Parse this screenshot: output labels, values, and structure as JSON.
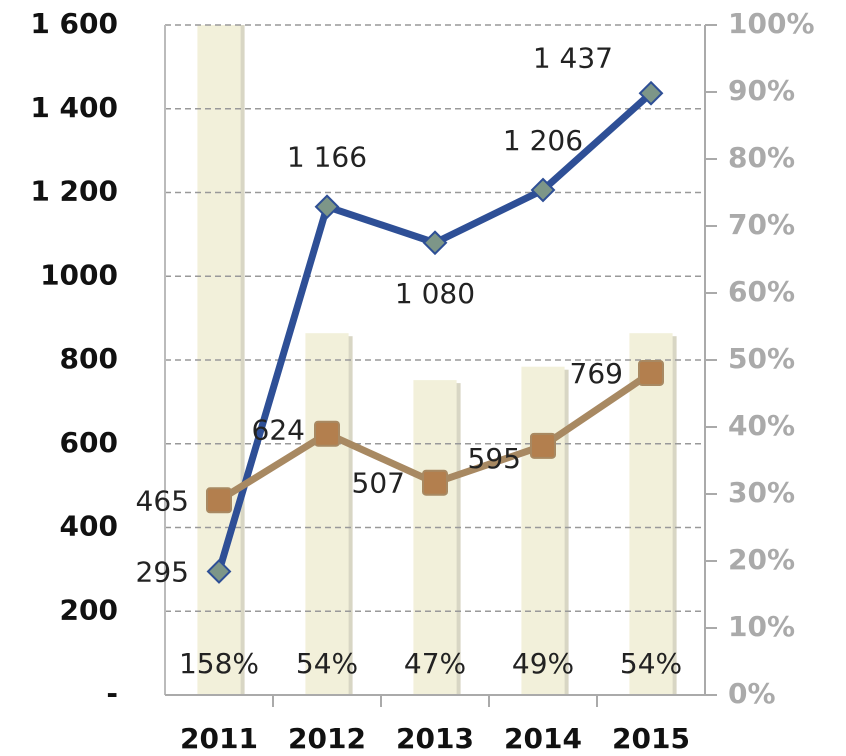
{
  "chart_data": {
    "type": "combo",
    "categories": [
      "2011",
      "2012",
      "2013",
      "2014",
      "2015"
    ],
    "series": [
      {
        "type": "bar",
        "axis": "y2",
        "color": "#f2f0da",
        "values": [
          158,
          54,
          47,
          49,
          54
        ],
        "value_labels": [
          "158%",
          "54%",
          "47%",
          "49%",
          "54%"
        ]
      },
      {
        "type": "line",
        "axis": "y",
        "color": "#2e4f96",
        "marker_color": "#7d9688",
        "values": [
          295,
          1166,
          1080,
          1206,
          1437
        ],
        "value_labels": [
          "295",
          "1 166",
          "1 080",
          "1 206",
          "1 437"
        ]
      },
      {
        "type": "line",
        "axis": "y",
        "color": "#a88962",
        "marker_color": "#b37f4e",
        "values": [
          465,
          624,
          507,
          595,
          769
        ]
      }
    ],
    "ylim": [
      0,
      1600
    ],
    "yticks": [
      {
        "value": 0,
        "label": "-"
      },
      200,
      400,
      600,
      800,
      1000,
      {
        "value": 1200,
        "label": "1 200"
      },
      {
        "value": 1400,
        "label": "1 400"
      },
      {
        "value": 1600,
        "label": "1 600"
      }
    ],
    "y2lim": [
      0,
      100
    ],
    "y2ticks": [
      {
        "value": 0,
        "label": "0%"
      },
      {
        "value": 10,
        "label": "10%"
      },
      {
        "value": 20,
        "label": "20%"
      },
      {
        "value": 30,
        "label": "30%"
      },
      {
        "value": 40,
        "label": "40%"
      },
      {
        "value": 50,
        "label": "50%"
      },
      {
        "value": 60,
        "label": "60%"
      },
      {
        "value": 70,
        "label": "70%"
      },
      {
        "value": 80,
        "label": "80%"
      },
      {
        "value": 90,
        "label": "90%"
      },
      {
        "value": 100,
        "label": "100%"
      }
    ],
    "grid": true
  }
}
